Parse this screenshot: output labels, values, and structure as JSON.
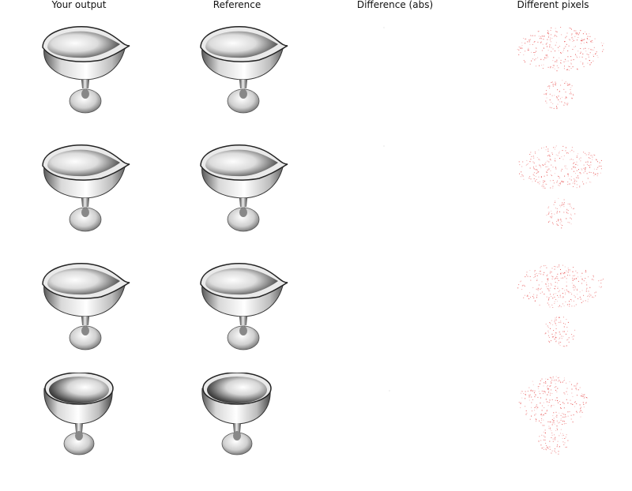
{
  "columns": [
    {
      "title": "Your output"
    },
    {
      "title": "Reference"
    },
    {
      "title": "Difference (abs)"
    },
    {
      "title": "Different pixels"
    }
  ],
  "rows": [
    {
      "view": "side-spout",
      "diff_speck": true
    },
    {
      "view": "side-spout",
      "diff_speck": true
    },
    {
      "view": "side-spout",
      "diff_speck": false
    },
    {
      "view": "front",
      "diff_speck": true
    }
  ],
  "colors": {
    "background": "#ffffff",
    "diff_dots": "#e33030",
    "cup_light": "#fafafa",
    "cup_dark": "#202020"
  }
}
